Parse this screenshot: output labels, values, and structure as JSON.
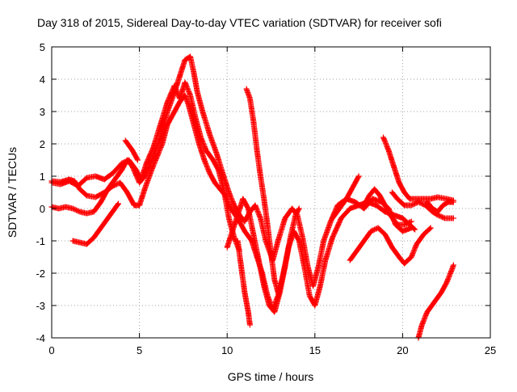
{
  "chart_data": {
    "type": "scatter",
    "title": "Day 318 of 2015, Sidereal Day-to-day VTEC variation (SDTVAR) for receiver sofi",
    "xlabel": "GPS time / hours",
    "ylabel": "SDTVAR / TECUs",
    "xlim": [
      0,
      25
    ],
    "ylim": [
      -4,
      5
    ],
    "x_ticks": [
      "0",
      "5",
      "10",
      "15",
      "20",
      "25"
    ],
    "y_ticks": [
      "5",
      "4",
      "3",
      "2",
      "1",
      "0",
      "-1",
      "-2",
      "-3",
      "-4"
    ],
    "grid": true,
    "marker": "+",
    "color": "#ff0000",
    "series": [
      {
        "points": [
          [
            0,
            0.85
          ],
          [
            0.5,
            0.82
          ],
          [
            1.0,
            0.9
          ],
          [
            1.3,
            0.85
          ],
          [
            1.6,
            0.6
          ],
          [
            2.0,
            0.4
          ],
          [
            2.5,
            0.35
          ],
          [
            3.0,
            0.5
          ],
          [
            3.5,
            0.7
          ],
          [
            3.9,
            0.8
          ],
          [
            4.3,
            0.5
          ],
          [
            4.7,
            0.1
          ],
          [
            5.0,
            0.1
          ],
          [
            5.3,
            0.6
          ],
          [
            5.7,
            1.2
          ],
          [
            6.0,
            1.6
          ],
          [
            6.3,
            2.0
          ],
          [
            6.6,
            2.6
          ],
          [
            7.0,
            3.0
          ],
          [
            7.3,
            3.3
          ],
          [
            7.6,
            3.5
          ],
          [
            7.8,
            3.2
          ],
          [
            8.1,
            2.6
          ],
          [
            8.4,
            2.0
          ],
          [
            8.7,
            1.5
          ],
          [
            9.0,
            1.1
          ],
          [
            9.3,
            0.8
          ],
          [
            9.6,
            0.6
          ],
          [
            9.9,
            0.4
          ],
          [
            10.2,
            0.0
          ],
          [
            10.6,
            -0.3
          ],
          [
            11.0,
            -0.7
          ],
          [
            11.4,
            -1.0
          ],
          [
            11.7,
            -1.5
          ],
          [
            12.0,
            -2.0
          ],
          [
            12.3,
            -2.7
          ],
          [
            12.6,
            -3.1
          ],
          [
            12.9,
            -2.7
          ],
          [
            13.2,
            -2.0
          ],
          [
            13.5,
            -1.2
          ],
          [
            13.8,
            -0.7
          ],
          [
            14.1,
            -1.0
          ],
          [
            14.4,
            -1.8
          ],
          [
            14.7,
            -2.7
          ],
          [
            15.0,
            -3.0
          ],
          [
            15.3,
            -2.4
          ],
          [
            15.6,
            -1.6
          ],
          [
            16.0,
            -0.9
          ],
          [
            16.5,
            -0.3
          ],
          [
            17.0,
            0.0
          ],
          [
            17.5,
            0.1
          ],
          [
            18.0,
            0.2
          ],
          [
            18.5,
            0.1
          ],
          [
            19.0,
            -0.1
          ],
          [
            19.5,
            -0.2
          ],
          [
            20.0,
            -0.3
          ],
          [
            20.4,
            -0.5
          ],
          [
            20.7,
            -0.65
          ]
        ]
      },
      {
        "points": [
          [
            0,
            0.05
          ],
          [
            0.4,
            0.0
          ],
          [
            0.8,
            0.05
          ],
          [
            1.2,
            0.0
          ],
          [
            1.6,
            -0.1
          ],
          [
            2.0,
            -0.15
          ],
          [
            2.4,
            -0.1
          ],
          [
            2.8,
            0.2
          ],
          [
            3.2,
            0.6
          ],
          [
            3.6,
            0.9
          ],
          [
            4.0,
            1.2
          ],
          [
            4.3,
            1.5
          ],
          [
            4.6,
            1.3
          ],
          [
            5.0,
            0.8
          ],
          [
            5.3,
            1.0
          ],
          [
            5.7,
            1.5
          ],
          [
            6.2,
            2.2
          ],
          [
            6.6,
            3.0
          ],
          [
            7.0,
            3.6
          ],
          [
            7.3,
            4.1
          ],
          [
            7.6,
            4.6
          ],
          [
            7.9,
            4.7
          ],
          [
            8.1,
            4.2
          ],
          [
            8.3,
            3.6
          ],
          [
            8.6,
            3.0
          ],
          [
            9.0,
            2.3
          ],
          [
            9.4,
            1.7
          ],
          [
            9.8,
            1.0
          ],
          [
            10.1,
            0.5
          ],
          [
            10.4,
            0.1
          ],
          [
            10.7,
            -0.2
          ],
          [
            11.0,
            -0.4
          ],
          [
            11.3,
            -0.1
          ],
          [
            11.6,
            0.1
          ],
          [
            11.9,
            -0.3
          ],
          [
            12.2,
            -1.0
          ],
          [
            12.6,
            -1.6
          ],
          [
            12.9,
            -1.0
          ],
          [
            13.3,
            -0.3
          ],
          [
            13.7,
            0.0
          ],
          [
            14.0,
            -0.2
          ],
          [
            14.3,
            -0.9
          ],
          [
            14.6,
            -1.8
          ],
          [
            14.9,
            -2.4
          ],
          [
            15.2,
            -1.8
          ],
          [
            15.5,
            -1.0
          ],
          [
            15.9,
            -0.4
          ],
          [
            16.3,
            0.1
          ],
          [
            16.8,
            0.3
          ],
          [
            17.3,
            0.2
          ],
          [
            17.8,
            0.0
          ],
          [
            18.3,
            0.3
          ],
          [
            18.8,
            0.2
          ],
          [
            19.2,
            0.0
          ],
          [
            19.6,
            -0.5
          ],
          [
            20.0,
            -0.7
          ],
          [
            20.5,
            -0.6
          ]
        ]
      },
      {
        "points": [
          [
            0,
            0.8
          ],
          [
            0.5,
            0.75
          ],
          [
            1.0,
            0.85
          ],
          [
            1.5,
            0.7
          ],
          [
            2.0,
            0.95
          ],
          [
            2.5,
            1.0
          ],
          [
            3.0,
            0.9
          ],
          [
            3.5,
            1.1
          ],
          [
            4.0,
            1.4
          ],
          [
            4.4,
            1.5
          ],
          [
            4.8,
            1.2
          ],
          [
            5.1,
            0.9
          ],
          [
            5.4,
            1.4
          ],
          [
            5.8,
            1.9
          ],
          [
            6.2,
            2.6
          ],
          [
            6.6,
            3.3
          ],
          [
            7.0,
            3.8
          ],
          [
            7.3,
            3.4
          ],
          [
            7.6,
            3.9
          ],
          [
            7.9,
            3.5
          ],
          [
            8.2,
            2.8
          ],
          [
            8.5,
            2.2
          ],
          [
            8.8,
            1.8
          ],
          [
            9.2,
            1.5
          ],
          [
            9.5,
            1.2
          ],
          [
            9.8,
            0.6
          ],
          [
            10.1,
            -0.3
          ],
          [
            10.4,
            -0.9
          ],
          [
            10.7,
            -1.3
          ]
        ]
      },
      {
        "points": [
          [
            1.2,
            -1.0
          ],
          [
            1.6,
            -1.05
          ],
          [
            2.0,
            -1.1
          ],
          [
            2.4,
            -0.9
          ],
          [
            2.8,
            -0.6
          ],
          [
            3.2,
            -0.3
          ],
          [
            3.6,
            0.0
          ],
          [
            3.8,
            0.15
          ]
        ]
      },
      {
        "points": [
          [
            4.2,
            2.1
          ],
          [
            4.6,
            1.8
          ],
          [
            4.9,
            1.5
          ]
        ]
      },
      {
        "points": [
          [
            10.0,
            -1.2
          ],
          [
            10.3,
            -0.7
          ],
          [
            10.6,
            -0.2
          ],
          [
            10.9,
            0.3
          ],
          [
            11.2,
            0.0
          ],
          [
            11.5,
            -0.8
          ],
          [
            11.8,
            -1.6
          ],
          [
            12.1,
            -2.4
          ],
          [
            12.4,
            -3.0
          ],
          [
            12.7,
            -3.2
          ],
          [
            13.0,
            -2.6
          ],
          [
            13.3,
            -1.8
          ],
          [
            13.6,
            -0.9
          ],
          [
            13.9,
            -0.2
          ],
          [
            14.1,
            0.0
          ]
        ]
      },
      {
        "points": [
          [
            10.6,
            -1.0
          ],
          [
            10.8,
            -1.8
          ],
          [
            11.0,
            -2.6
          ],
          [
            11.2,
            -3.2
          ],
          [
            11.3,
            -3.6
          ]
        ]
      },
      {
        "points": [
          [
            11.1,
            3.7
          ],
          [
            11.3,
            3.4
          ],
          [
            11.5,
            2.7
          ],
          [
            11.7,
            1.8
          ],
          [
            11.9,
            1.0
          ],
          [
            12.1,
            0.3
          ],
          [
            12.3,
            -0.5
          ],
          [
            12.5,
            -1.4
          ],
          [
            12.7,
            -2.2
          ],
          [
            12.9,
            -2.6
          ]
        ]
      },
      {
        "points": [
          [
            16.0,
            -0.3
          ],
          [
            16.4,
            0.0
          ],
          [
            16.8,
            0.3
          ],
          [
            17.2,
            0.7
          ],
          [
            17.5,
            1.0
          ]
        ]
      },
      {
        "points": [
          [
            17.0,
            -1.6
          ],
          [
            17.4,
            -1.3
          ],
          [
            17.8,
            -1.0
          ],
          [
            18.2,
            -0.7
          ],
          [
            18.6,
            -0.6
          ],
          [
            19.0,
            -0.8
          ],
          [
            19.4,
            -1.2
          ],
          [
            19.8,
            -1.5
          ],
          [
            20.1,
            -1.7
          ],
          [
            20.5,
            -1.5
          ],
          [
            20.8,
            -1.1
          ],
          [
            21.2,
            -0.8
          ],
          [
            21.6,
            -0.6
          ]
        ]
      },
      {
        "points": [
          [
            17.8,
            0.1
          ],
          [
            18.1,
            0.4
          ],
          [
            18.4,
            0.6
          ],
          [
            18.7,
            0.4
          ],
          [
            19.0,
            0.1
          ],
          [
            19.3,
            -0.2
          ],
          [
            19.7,
            -0.5
          ],
          [
            20.1,
            -0.5
          ],
          [
            20.5,
            -0.4
          ]
        ]
      },
      {
        "points": [
          [
            18.9,
            2.2
          ],
          [
            19.2,
            1.8
          ],
          [
            19.5,
            1.3
          ],
          [
            19.8,
            0.8
          ],
          [
            20.1,
            0.5
          ],
          [
            20.4,
            0.3
          ],
          [
            20.8,
            0.3
          ],
          [
            21.2,
            0.3
          ],
          [
            21.6,
            0.3
          ],
          [
            22.0,
            0.35
          ],
          [
            22.5,
            0.3
          ],
          [
            22.9,
            0.25
          ]
        ]
      },
      {
        "points": [
          [
            19.4,
            0.5
          ],
          [
            19.7,
            0.3
          ],
          [
            20.1,
            0.1
          ],
          [
            20.5,
            0.1
          ],
          [
            20.9,
            0.2
          ],
          [
            21.3,
            0.1
          ],
          [
            21.7,
            -0.1
          ],
          [
            22.0,
            -0.2
          ],
          [
            22.4,
            -0.3
          ],
          [
            22.9,
            -0.3
          ]
        ]
      },
      {
        "points": [
          [
            20.9,
            -4.0
          ],
          [
            21.1,
            -3.6
          ],
          [
            21.4,
            -3.2
          ],
          [
            21.8,
            -2.9
          ],
          [
            22.2,
            -2.6
          ],
          [
            22.5,
            -2.3
          ],
          [
            22.8,
            -1.9
          ],
          [
            22.9,
            -1.75
          ]
        ]
      },
      {
        "points": [
          [
            21.4,
            0.2
          ],
          [
            21.7,
            0.0
          ],
          [
            22.0,
            -0.1
          ],
          [
            22.3,
            0.1
          ],
          [
            22.6,
            0.2
          ],
          [
            22.9,
            0.2
          ]
        ]
      }
    ]
  }
}
